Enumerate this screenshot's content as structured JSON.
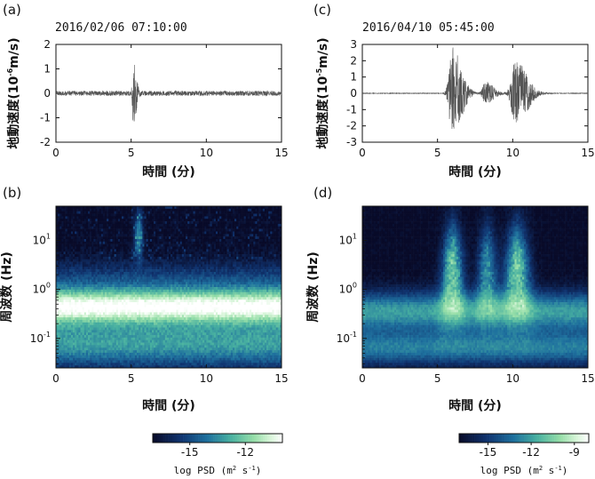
{
  "chart_data": [
    {
      "id": "a",
      "type": "line",
      "panel_label": "(a)",
      "timestamp": "2016/02/06 07:10:00",
      "ylabel": "地動速度(10",
      "ylabel_exp": "-6",
      "ylabel_unit": "m/s)",
      "xlabel": "時間 (分)",
      "xlim": [
        0,
        15
      ],
      "ylim": [
        -2,
        2
      ],
      "xticks": [
        0,
        5,
        10,
        15
      ],
      "yticks": [
        -2,
        -1,
        0,
        1,
        2
      ],
      "line_color": "#555555",
      "noise_amplitude": 0.1,
      "events": [
        {
          "center_min": 5.15,
          "peak": 1.2,
          "width_min": 0.25
        }
      ]
    },
    {
      "id": "c",
      "type": "line",
      "panel_label": "(c)",
      "timestamp": "2016/04/10 05:45:00",
      "ylabel": "地動速度(10",
      "ylabel_exp": "-5",
      "ylabel_unit": "m/s)",
      "xlabel": "時間 (分)",
      "xlim": [
        0,
        15
      ],
      "ylim": [
        -3,
        3
      ],
      "xticks": [
        0,
        5,
        10,
        15
      ],
      "yticks": [
        -3,
        -2,
        -1,
        0,
        1,
        2,
        3
      ],
      "line_color": "#555555",
      "noise_amplitude": 0.02,
      "events": [
        {
          "center_min": 6.0,
          "peak": 2.8,
          "width_min": 0.8
        },
        {
          "center_min": 8.2,
          "peak": 0.7,
          "width_min": 0.7
        },
        {
          "center_min": 10.2,
          "peak": 2.0,
          "width_min": 1.0
        }
      ]
    },
    {
      "id": "b",
      "type": "heatmap",
      "panel_label": "(b)",
      "ylabel": "周波数 (Hz)",
      "xlabel": "時間 (分)",
      "xlim": [
        0,
        15
      ],
      "ylim_hz": [
        0.025,
        50
      ],
      "yscale": "log",
      "xticks": [
        0,
        5,
        10,
        15
      ],
      "yticks": [
        {
          "base": "10",
          "exp": "-1",
          "value": 0.1
        },
        {
          "base": "10",
          "exp": "0",
          "value": 1
        },
        {
          "base": "10",
          "exp": "1",
          "value": 10
        }
      ],
      "colormap": "cubehelix-blue-green",
      "zlim": [
        -17,
        -10
      ],
      "events": [
        {
          "center_min": 5.5,
          "width_min": 0.5,
          "strength": 5
        }
      ]
    },
    {
      "id": "d",
      "type": "heatmap",
      "panel_label": "(d)",
      "ylabel": "周波数 (Hz)",
      "xlabel": "時間 (分)",
      "xlim": [
        0,
        15
      ],
      "ylim_hz": [
        0.025,
        50
      ],
      "yscale": "log",
      "xticks": [
        0,
        5,
        10,
        15
      ],
      "yticks": [
        {
          "base": "10",
          "exp": "-1",
          "value": 0.1
        },
        {
          "base": "10",
          "exp": "0",
          "value": 1
        },
        {
          "base": "10",
          "exp": "1",
          "value": 10
        }
      ],
      "colormap": "cubehelix-blue-green",
      "zlim": [
        -17,
        -8
      ],
      "events": [
        {
          "center_min": 6.0,
          "width_min": 1.2,
          "strength": 7
        },
        {
          "center_min": 8.3,
          "width_min": 1.1,
          "strength": 5
        },
        {
          "center_min": 10.3,
          "width_min": 1.4,
          "strength": 7
        }
      ]
    }
  ],
  "colorbars": [
    {
      "id": "cb-left",
      "ticks": [
        "-15",
        "-12"
      ],
      "tick_values": [
        -15,
        -12
      ],
      "zlim": [
        -17,
        -10
      ],
      "label": "log PSD (m",
      "label_exp1": "2",
      "label_mid": " s",
      "label_exp2": "-1",
      "label_end": ")"
    },
    {
      "id": "cb-right",
      "ticks": [
        "-15",
        "-12",
        "-9"
      ],
      "tick_values": [
        -15,
        -12,
        -9
      ],
      "zlim": [
        -17,
        -8
      ],
      "label": "log PSD (m",
      "label_exp1": "2",
      "label_mid": " s",
      "label_exp2": "-1",
      "label_end": ")"
    }
  ]
}
